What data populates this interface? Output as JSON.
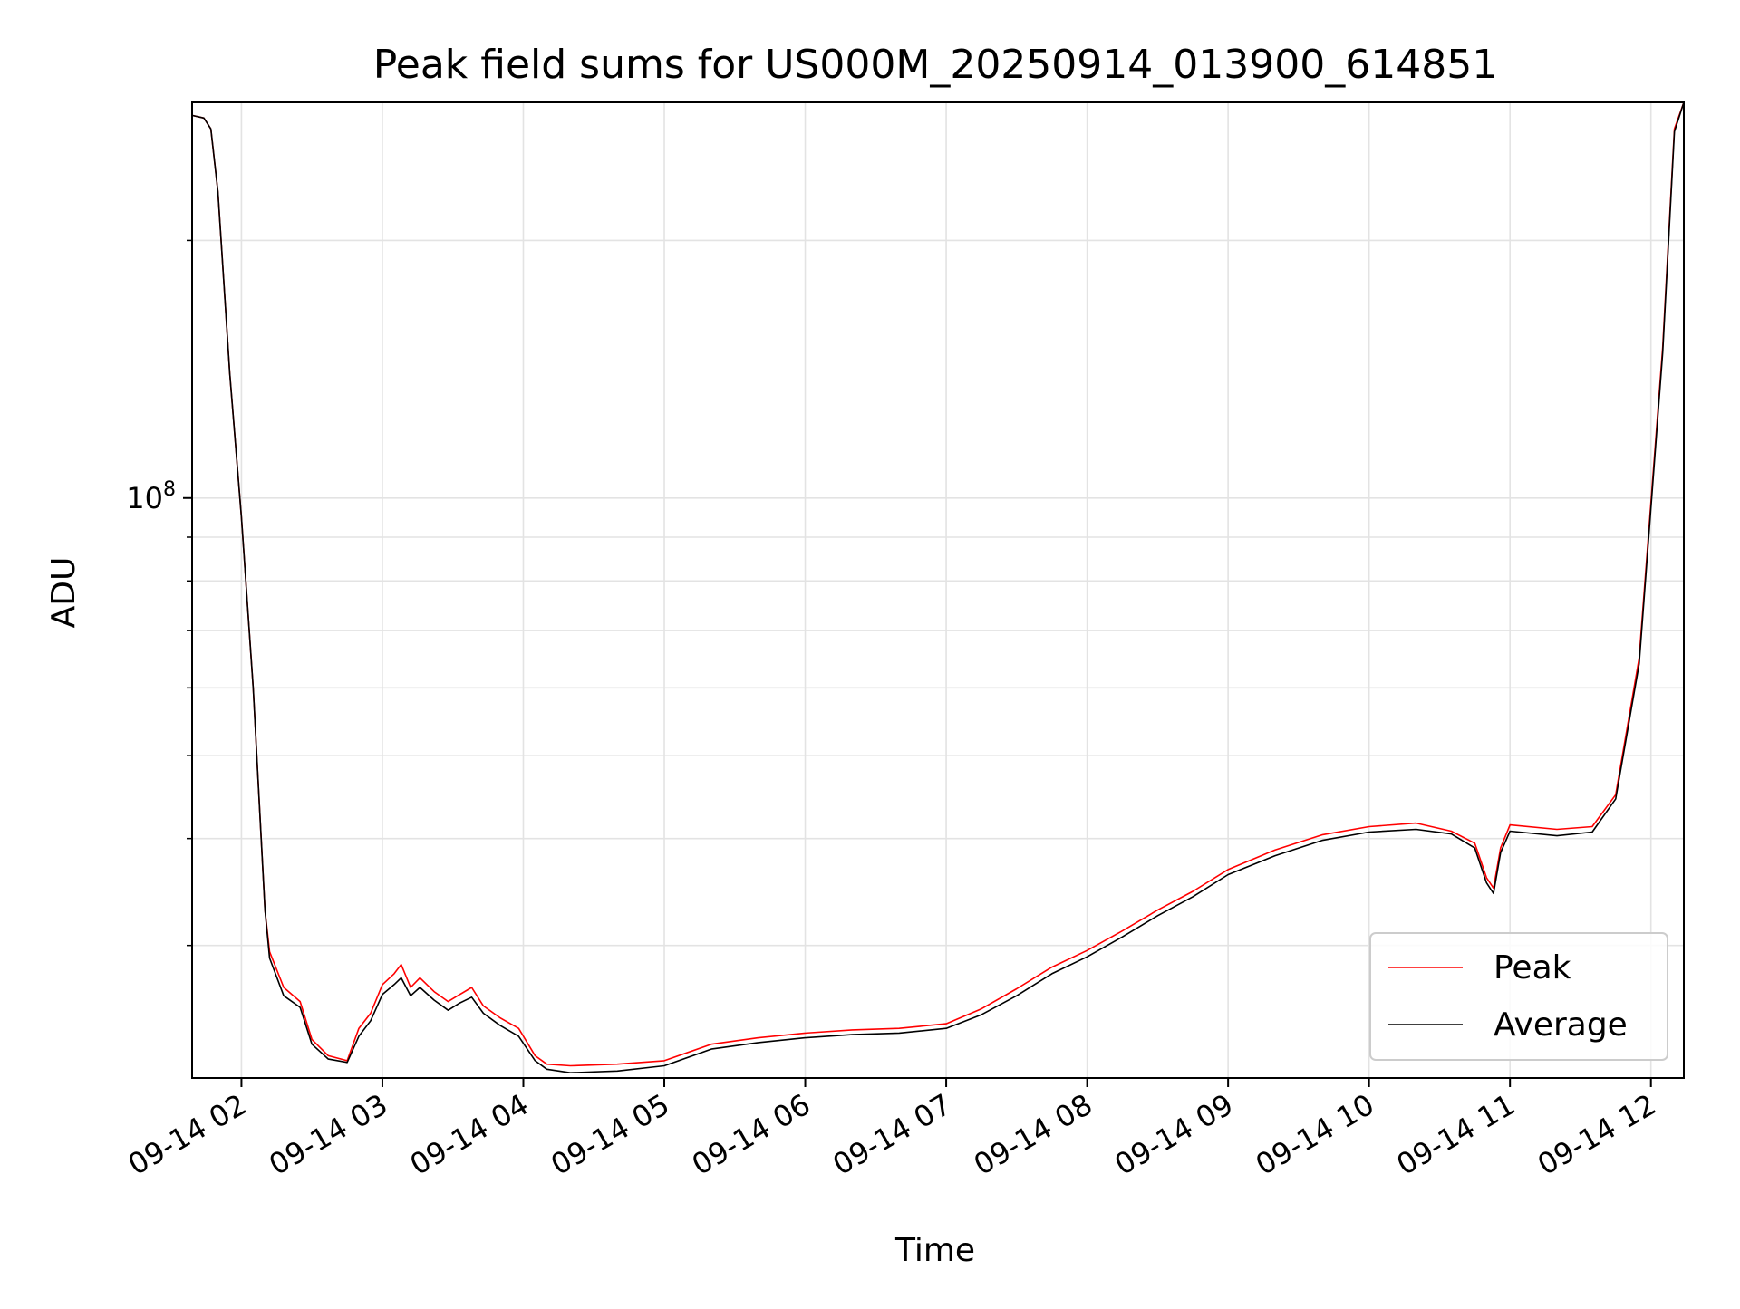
{
  "chart_data": {
    "type": "line",
    "title": "Peak field sums for US000M_20250914_013900_614851",
    "xlabel": "Time",
    "ylabel": "ADU",
    "x_scale": "time",
    "y_scale": "log",
    "xlim": [
      "2025-09-14 01:39",
      "2025-09-14 12:14"
    ],
    "ylim": [
      21000000,
      290000000
    ],
    "x_ticks": [
      "09-14 02",
      "09-14 03",
      "09-14 04",
      "09-14 05",
      "09-14 06",
      "09-14 07",
      "09-14 08",
      "09-14 09",
      "09-14 10",
      "09-14 11",
      "09-14 12"
    ],
    "x_tick_times": [
      "2025-09-14 02:00",
      "2025-09-14 03:00",
      "2025-09-14 04:00",
      "2025-09-14 05:00",
      "2025-09-14 06:00",
      "2025-09-14 07:00",
      "2025-09-14 08:00",
      "2025-09-14 09:00",
      "2025-09-14 10:00",
      "2025-09-14 11:00",
      "2025-09-14 12:00"
    ],
    "y_major_tick": {
      "value": 100000000,
      "base": "10",
      "exp": "8"
    },
    "y_minor_ticks": [
      30000000,
      40000000,
      50000000,
      60000000,
      70000000,
      80000000,
      90000000,
      200000000
    ],
    "grid": true,
    "legend_position": "lower right",
    "series": [
      {
        "name": "Peak",
        "color": "#ff0000",
        "points": [
          [
            "2025-09-14 01:39",
            280000000
          ],
          [
            "2025-09-14 01:44",
            278000000
          ],
          [
            "2025-09-14 01:47",
            270000000
          ],
          [
            "2025-09-14 01:50",
            228000000
          ],
          [
            "2025-09-14 01:55",
            140000000
          ],
          [
            "2025-09-14 02:00",
            95000000
          ],
          [
            "2025-09-14 02:05",
            60000000
          ],
          [
            "2025-09-14 02:10",
            33000000
          ],
          [
            "2025-09-14 02:12",
            29500000
          ],
          [
            "2025-09-14 02:18",
            26800000
          ],
          [
            "2025-09-14 02:25",
            25800000
          ],
          [
            "2025-09-14 02:30",
            23300000
          ],
          [
            "2025-09-14 02:37",
            22300000
          ],
          [
            "2025-09-14 02:45",
            22000000
          ],
          [
            "2025-09-14 02:50",
            24000000
          ],
          [
            "2025-09-14 02:55",
            25000000
          ],
          [
            "2025-09-14 03:00",
            27000000
          ],
          [
            "2025-09-14 03:05",
            27800000
          ],
          [
            "2025-09-14 03:08",
            28500000
          ],
          [
            "2025-09-14 03:12",
            26800000
          ],
          [
            "2025-09-14 03:16",
            27500000
          ],
          [
            "2025-09-14 03:22",
            26500000
          ],
          [
            "2025-09-14 03:28",
            25800000
          ],
          [
            "2025-09-14 03:33",
            26300000
          ],
          [
            "2025-09-14 03:38",
            26800000
          ],
          [
            "2025-09-14 03:43",
            25500000
          ],
          [
            "2025-09-14 03:50",
            24700000
          ],
          [
            "2025-09-14 03:58",
            24000000
          ],
          [
            "2025-09-14 04:05",
            22300000
          ],
          [
            "2025-09-14 04:10",
            21800000
          ],
          [
            "2025-09-14 04:20",
            21700000
          ],
          [
            "2025-09-14 04:40",
            21800000
          ],
          [
            "2025-09-14 05:00",
            22000000
          ],
          [
            "2025-09-14 05:20",
            23000000
          ],
          [
            "2025-09-14 05:40",
            23400000
          ],
          [
            "2025-09-14 06:00",
            23700000
          ],
          [
            "2025-09-14 06:20",
            23900000
          ],
          [
            "2025-09-14 06:40",
            24000000
          ],
          [
            "2025-09-14 07:00",
            24300000
          ],
          [
            "2025-09-14 07:15",
            25300000
          ],
          [
            "2025-09-14 07:30",
            26700000
          ],
          [
            "2025-09-14 07:45",
            28300000
          ],
          [
            "2025-09-14 08:00",
            29600000
          ],
          [
            "2025-09-14 08:15",
            31200000
          ],
          [
            "2025-09-14 08:30",
            33000000
          ],
          [
            "2025-09-14 08:45",
            34700000
          ],
          [
            "2025-09-14 09:00",
            36800000
          ],
          [
            "2025-09-14 09:20",
            38800000
          ],
          [
            "2025-09-14 09:40",
            40400000
          ],
          [
            "2025-09-14 10:00",
            41300000
          ],
          [
            "2025-09-14 10:20",
            41700000
          ],
          [
            "2025-09-14 10:35",
            40800000
          ],
          [
            "2025-09-14 10:45",
            39500000
          ],
          [
            "2025-09-14 10:50",
            36000000
          ],
          [
            "2025-09-14 10:53",
            35000000
          ],
          [
            "2025-09-14 10:56",
            39000000
          ],
          [
            "2025-09-14 11:00",
            41500000
          ],
          [
            "2025-09-14 11:20",
            41000000
          ],
          [
            "2025-09-14 11:35",
            41300000
          ],
          [
            "2025-09-14 11:45",
            45000000
          ],
          [
            "2025-09-14 11:55",
            65000000
          ],
          [
            "2025-09-14 12:05",
            150000000
          ],
          [
            "2025-09-14 12:10",
            270000000
          ],
          [
            "2025-09-14 12:14",
            290000000
          ]
        ]
      },
      {
        "name": "Average",
        "color": "#000000",
        "points": [
          [
            "2025-09-14 01:39",
            280000000
          ],
          [
            "2025-09-14 01:44",
            278000000
          ],
          [
            "2025-09-14 01:47",
            270000000
          ],
          [
            "2025-09-14 01:50",
            228000000
          ],
          [
            "2025-09-14 01:55",
            140000000
          ],
          [
            "2025-09-14 02:00",
            95000000
          ],
          [
            "2025-09-14 02:05",
            60000000
          ],
          [
            "2025-09-14 02:10",
            33000000
          ],
          [
            "2025-09-14 02:12",
            29000000
          ],
          [
            "2025-09-14 02:18",
            26200000
          ],
          [
            "2025-09-14 02:25",
            25400000
          ],
          [
            "2025-09-14 02:30",
            23000000
          ],
          [
            "2025-09-14 02:37",
            22100000
          ],
          [
            "2025-09-14 02:45",
            21900000
          ],
          [
            "2025-09-14 02:50",
            23500000
          ],
          [
            "2025-09-14 02:55",
            24500000
          ],
          [
            "2025-09-14 03:00",
            26300000
          ],
          [
            "2025-09-14 03:05",
            27000000
          ],
          [
            "2025-09-14 03:08",
            27500000
          ],
          [
            "2025-09-14 03:12",
            26200000
          ],
          [
            "2025-09-14 03:16",
            26800000
          ],
          [
            "2025-09-14 03:22",
            25900000
          ],
          [
            "2025-09-14 03:28",
            25200000
          ],
          [
            "2025-09-14 03:33",
            25700000
          ],
          [
            "2025-09-14 03:38",
            26100000
          ],
          [
            "2025-09-14 03:43",
            25000000
          ],
          [
            "2025-09-14 03:50",
            24200000
          ],
          [
            "2025-09-14 03:58",
            23500000
          ],
          [
            "2025-09-14 04:05",
            22000000
          ],
          [
            "2025-09-14 04:10",
            21500000
          ],
          [
            "2025-09-14 04:20",
            21300000
          ],
          [
            "2025-09-14 04:40",
            21400000
          ],
          [
            "2025-09-14 05:00",
            21700000
          ],
          [
            "2025-09-14 05:20",
            22700000
          ],
          [
            "2025-09-14 05:40",
            23100000
          ],
          [
            "2025-09-14 06:00",
            23400000
          ],
          [
            "2025-09-14 06:20",
            23600000
          ],
          [
            "2025-09-14 06:40",
            23700000
          ],
          [
            "2025-09-14 07:00",
            24000000
          ],
          [
            "2025-09-14 07:15",
            24900000
          ],
          [
            "2025-09-14 07:30",
            26200000
          ],
          [
            "2025-09-14 07:45",
            27800000
          ],
          [
            "2025-09-14 08:00",
            29100000
          ],
          [
            "2025-09-14 08:15",
            30700000
          ],
          [
            "2025-09-14 08:30",
            32500000
          ],
          [
            "2025-09-14 08:45",
            34200000
          ],
          [
            "2025-09-14 09:00",
            36300000
          ],
          [
            "2025-09-14 09:20",
            38200000
          ],
          [
            "2025-09-14 09:40",
            39800000
          ],
          [
            "2025-09-14 10:00",
            40700000
          ],
          [
            "2025-09-14 10:20",
            41000000
          ],
          [
            "2025-09-14 10:35",
            40500000
          ],
          [
            "2025-09-14 10:45",
            39000000
          ],
          [
            "2025-09-14 10:50",
            35500000
          ],
          [
            "2025-09-14 10:53",
            34500000
          ],
          [
            "2025-09-14 10:56",
            38500000
          ],
          [
            "2025-09-14 11:00",
            40800000
          ],
          [
            "2025-09-14 11:20",
            40300000
          ],
          [
            "2025-09-14 11:35",
            40700000
          ],
          [
            "2025-09-14 11:45",
            44500000
          ],
          [
            "2025-09-14 11:55",
            64000000
          ],
          [
            "2025-09-14 12:05",
            148000000
          ],
          [
            "2025-09-14 12:10",
            268000000
          ],
          [
            "2025-09-14 12:14",
            290000000
          ]
        ]
      }
    ]
  }
}
